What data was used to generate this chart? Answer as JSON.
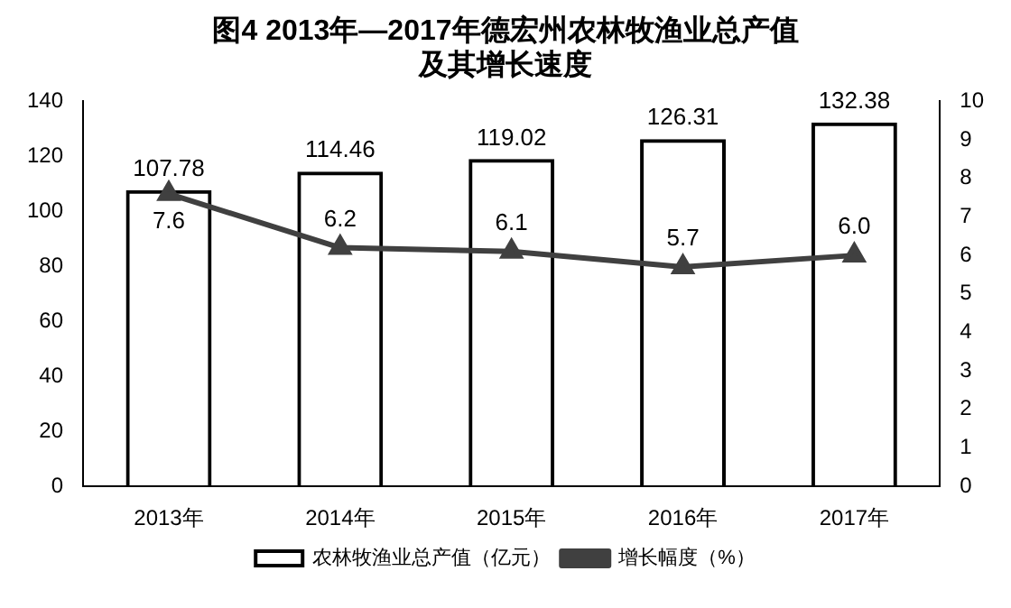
{
  "chart_data": {
    "type": "bar",
    "title": "图4  2013年—2017年德宏州农林牧渔业总产值及其增长速度",
    "categories": [
      "2013年",
      "2014年",
      "2015年",
      "2016年",
      "2017年"
    ],
    "series": [
      {
        "name": "农林牧渔业总产值（亿元）",
        "color": "#000000",
        "values": [
          107.78,
          114.46,
          119.02,
          126.31,
          132.38
        ]
      },
      {
        "name": "增长幅度（%）",
        "type": "line",
        "axis": "y2",
        "color": "#404040",
        "values": [
          7.6,
          6.2,
          6.1,
          5.7,
          6.0
        ],
        "value_labels": [
          "7.6",
          "6.2",
          "6.1",
          "5.7",
          "6.0"
        ]
      }
    ],
    "ylim": [
      0,
      140
    ],
    "yticks": [
      0,
      20,
      40,
      60,
      80,
      100,
      120,
      140
    ],
    "y2lim": [
      0,
      10
    ],
    "y2ticks": [
      0,
      1,
      2,
      3,
      4,
      5,
      6,
      7,
      8,
      9,
      10
    ],
    "data_labels": true,
    "grid": false,
    "legend": "bottom",
    "marker": "triangle"
  }
}
